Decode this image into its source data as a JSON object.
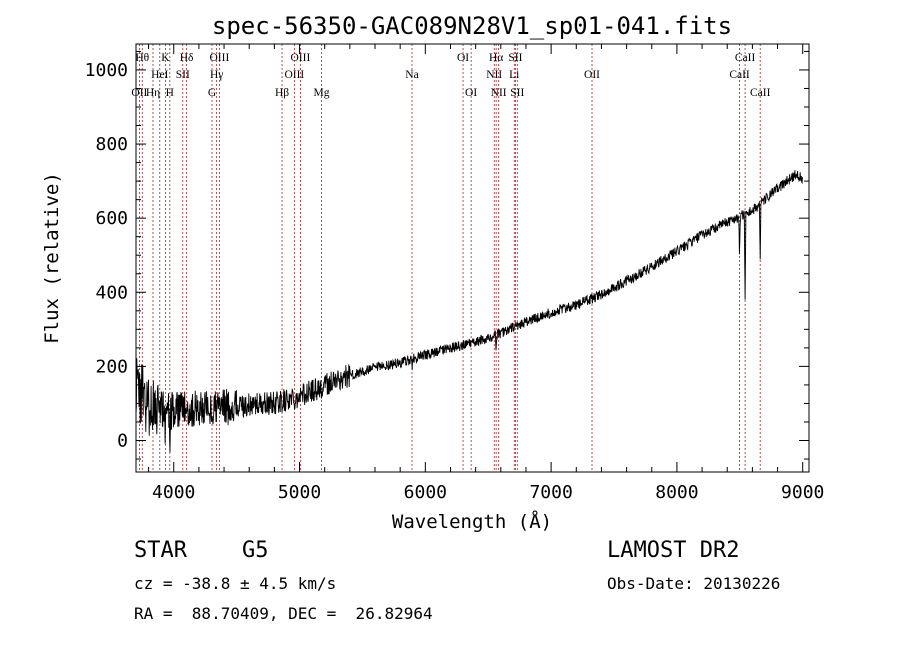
{
  "chart_data": {
    "type": "line",
    "title": "spec-56350-GAC089N28V1_sp01-041.fits",
    "xlabel": "Wavelength (Å)",
    "ylabel": "Flux (relative)",
    "xlim": [
      3700,
      9050
    ],
    "ylim": [
      -85,
      1070
    ],
    "x_ticks": [
      4000,
      5000,
      6000,
      7000,
      8000,
      9000
    ],
    "y_ticks": [
      0,
      200,
      400,
      600,
      800,
      1000
    ],
    "grid": false,
    "line_color": "#000000",
    "marker_color": "#b22222",
    "spectrum_knots": [
      [
        3700,
        150
      ],
      [
        3750,
        120
      ],
      [
        3800,
        90
      ],
      [
        3900,
        85
      ],
      [
        4000,
        80
      ],
      [
        4200,
        85
      ],
      [
        4400,
        90
      ],
      [
        4600,
        95
      ],
      [
        4800,
        100
      ],
      [
        5000,
        120
      ],
      [
        5200,
        150
      ],
      [
        5400,
        175
      ],
      [
        5600,
        195
      ],
      [
        5800,
        210
      ],
      [
        6000,
        230
      ],
      [
        6200,
        250
      ],
      [
        6400,
        265
      ],
      [
        6600,
        290
      ],
      [
        6800,
        320
      ],
      [
        7000,
        345
      ],
      [
        7200,
        365
      ],
      [
        7400,
        395
      ],
      [
        7600,
        430
      ],
      [
        7800,
        470
      ],
      [
        8000,
        510
      ],
      [
        8200,
        555
      ],
      [
        8400,
        590
      ],
      [
        8600,
        620
      ],
      [
        8800,
        680
      ],
      [
        8950,
        720
      ],
      [
        9000,
        705
      ]
    ],
    "spectral_lines": [
      {
        "label": "OII",
        "wavelength": 3727,
        "row": 3
      },
      {
        "label": "Hθ",
        "wavelength": 3750,
        "row": 1
      },
      {
        "label": "Hη",
        "wavelength": 3835,
        "row": 3
      },
      {
        "label": "HeI",
        "wavelength": 3889,
        "row": 2
      },
      {
        "label": "K",
        "wavelength": 3934,
        "row": 1
      },
      {
        "label": "SII",
        "wavelength": 4072,
        "row": 2
      },
      {
        "label": "H",
        "wavelength": 3969,
        "row": 3
      },
      {
        "label": "Hδ",
        "wavelength": 4102,
        "row": 1
      },
      {
        "label": "G",
        "wavelength": 4304,
        "row": 3
      },
      {
        "label": "Hγ",
        "wavelength": 4341,
        "row": 2
      },
      {
        "label": "OIII",
        "wavelength": 4363,
        "row": 1
      },
      {
        "label": "Hβ",
        "wavelength": 4861,
        "row": 3
      },
      {
        "label": "OIII",
        "wavelength": 4959,
        "row": 2
      },
      {
        "label": "OIII",
        "wavelength": 5007,
        "row": 1
      },
      {
        "label": "Mg",
        "wavelength": 5175,
        "row": 3
      },
      {
        "label": "Na",
        "wavelength": 5894,
        "row": 2
      },
      {
        "label": "OI",
        "wavelength": 6300,
        "row": 1
      },
      {
        "label": "OI",
        "wavelength": 6364,
        "row": 3
      },
      {
        "label": "NII",
        "wavelength": 6548,
        "row": 2
      },
      {
        "label": "Hα",
        "wavelength": 6563,
        "row": 1
      },
      {
        "label": "NII",
        "wavelength": 6583,
        "row": 3
      },
      {
        "label": "Li",
        "wavelength": 6707,
        "row": 2
      },
      {
        "label": "SII",
        "wavelength": 6716,
        "row": 1
      },
      {
        "label": "SII",
        "wavelength": 6731,
        "row": 3
      },
      {
        "label": "OII",
        "wavelength": 7325,
        "row": 2
      },
      {
        "label": "CaII",
        "wavelength": 8498,
        "row": 2
      },
      {
        "label": "CaII",
        "wavelength": 8542,
        "row": 1
      },
      {
        "label": "CaII",
        "wavelength": 8662,
        "row": 3
      }
    ]
  },
  "info": {
    "object_class": "STAR",
    "subclass": "G5",
    "survey": "LAMOST DR2",
    "cz": "cz = -38.8 ± 4.5 km/s",
    "obs_date": "Obs-Date: 20130226",
    "coords": "RA =  88.70409, DEC =  26.82964"
  }
}
